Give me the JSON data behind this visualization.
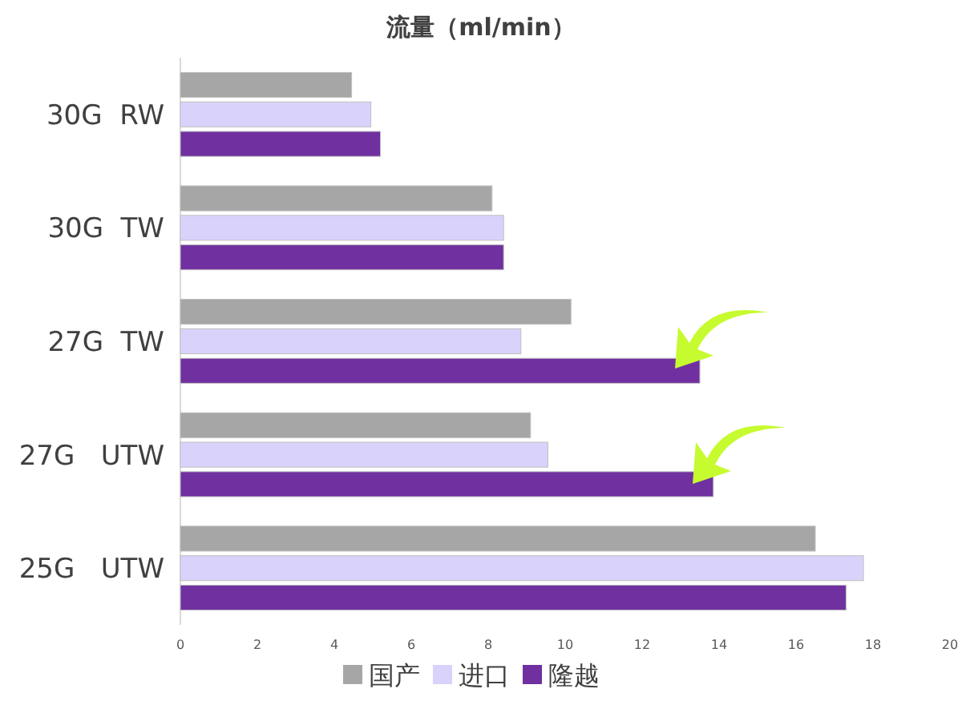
{
  "chart_data": {
    "type": "bar",
    "orientation": "horizontal",
    "title": "流量（ml/min）",
    "categories": [
      "30G  RW",
      "30G  TW",
      "27G  TW",
      "27G   UTW",
      "25G   UTW"
    ],
    "series": [
      {
        "name": "国产",
        "color": "#a6a6a6",
        "values": [
          4.45,
          8.1,
          10.15,
          9.1,
          16.5
        ]
      },
      {
        "name": "进口",
        "color": "#d9d2fb",
        "values": [
          4.95,
          8.4,
          8.85,
          9.55,
          17.75
        ]
      },
      {
        "name": "隆越",
        "color": "#7030a0",
        "values": [
          5.2,
          8.4,
          13.5,
          13.85,
          17.3
        ]
      }
    ],
    "xlim": [
      0,
      20
    ],
    "xticks": [
      0,
      2,
      4,
      6,
      8,
      10,
      12,
      14,
      16,
      18,
      20
    ],
    "grid": false,
    "legend": "bottom"
  }
}
